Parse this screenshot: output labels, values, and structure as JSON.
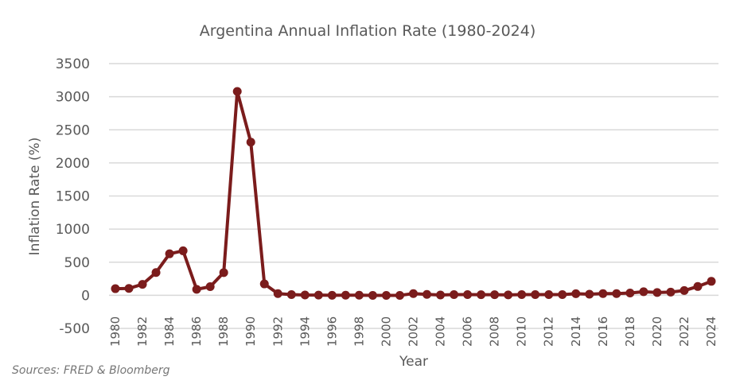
{
  "chart_data": {
    "type": "line",
    "title": "Argentina Annual Inflation Rate  (1980-2024)",
    "xlabel": "Year",
    "ylabel": "Inflation Rate (%)",
    "ylim": [
      -500,
      3500
    ],
    "yticks": [
      -500,
      0,
      500,
      1000,
      1500,
      2000,
      2500,
      3000,
      3500
    ],
    "ytick_labels": [
      "-500",
      "0",
      "500",
      "1000",
      "1500",
      "2000",
      "2500",
      "3000",
      "3500"
    ],
    "xtick_labels": [
      "1980",
      "1982",
      "1984",
      "1986",
      "1988",
      "1990",
      "1992",
      "1994",
      "1996",
      "1998",
      "2000",
      "2002",
      "2004",
      "2006",
      "2008",
      "2010",
      "2012",
      "2014",
      "2016",
      "2018",
      "2020",
      "2022",
      "2024"
    ],
    "grid": true,
    "legend": "none",
    "line_color": "#7b1c1c",
    "grid_color": "#d9d9d9",
    "series": [
      {
        "name": "Inflation Rate (%)",
        "x": [
          1980,
          1981,
          1982,
          1983,
          1984,
          1985,
          1986,
          1987,
          1988,
          1989,
          1990,
          1991,
          1992,
          1993,
          1994,
          1995,
          1996,
          1997,
          1998,
          1999,
          2000,
          2001,
          2002,
          2003,
          2004,
          2005,
          2006,
          2007,
          2008,
          2009,
          2010,
          2011,
          2012,
          2013,
          2014,
          2015,
          2016,
          2017,
          2018,
          2019,
          2020,
          2021,
          2022,
          2023,
          2024
        ],
        "values": [
          100,
          104,
          165,
          344,
          627,
          672,
          90,
          131,
          343,
          3080,
          2314,
          172,
          25,
          11,
          4,
          3,
          0,
          1,
          1,
          -1,
          -1,
          -1,
          26,
          13,
          4,
          10,
          11,
          9,
          9,
          6,
          11,
          10,
          10,
          11,
          24,
          17,
          26,
          26,
          34,
          54,
          42,
          48,
          72,
          133,
          211
        ]
      }
    ]
  },
  "footer": {
    "source": "Sources: FRED & Bloomberg"
  }
}
